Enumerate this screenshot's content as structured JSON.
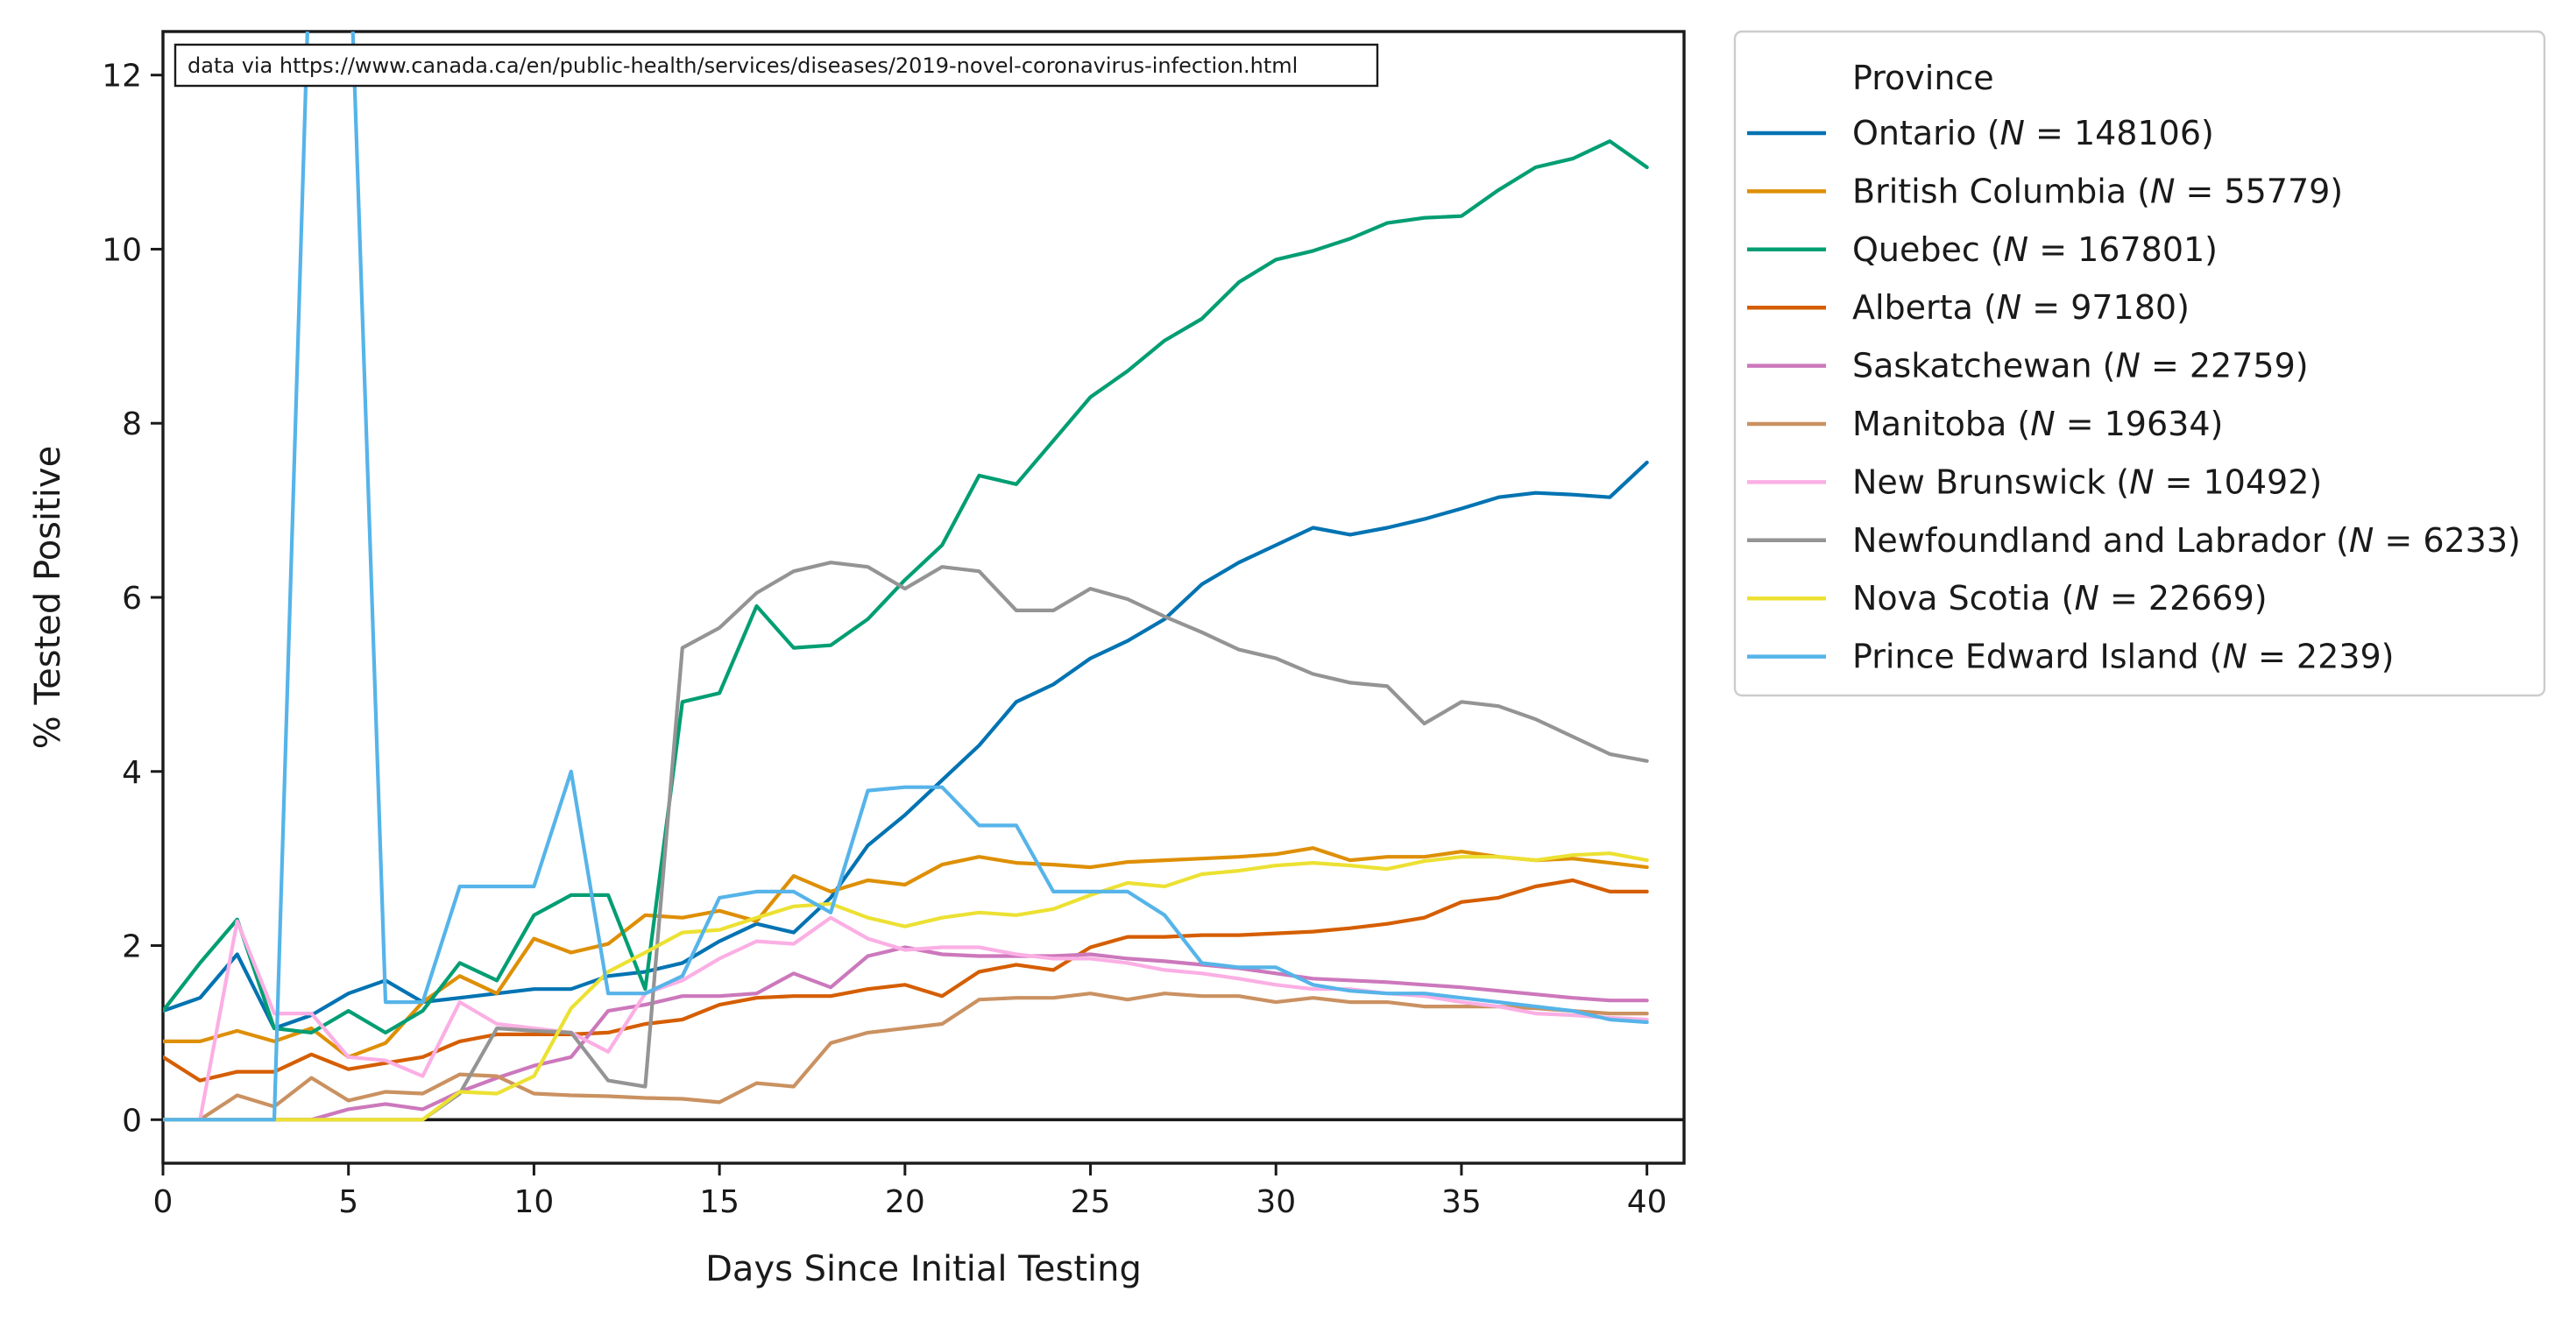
{
  "chart_data": {
    "type": "line",
    "title": "",
    "xlabel": "Days Since Initial Testing",
    "ylabel": "% Tested Positive",
    "xlim": [
      0,
      41
    ],
    "ylim": [
      -0.5,
      12.5
    ],
    "xticks": [
      0,
      5,
      10,
      15,
      20,
      25,
      30,
      35,
      40
    ],
    "yticks": [
      0,
      2,
      4,
      6,
      8,
      10,
      12
    ],
    "zero_line": true,
    "grid": false,
    "annotation": "data via https://www.canada.ca/en/public-health/services/diseases/2019-novel-coronavirus-infection.html",
    "legend": {
      "title": "Province",
      "placement": "outside right, top"
    },
    "x": [
      0,
      1,
      2,
      3,
      4,
      5,
      6,
      7,
      8,
      9,
      10,
      11,
      12,
      13,
      14,
      15,
      16,
      17,
      18,
      19,
      20,
      21,
      22,
      23,
      24,
      25,
      26,
      27,
      28,
      29,
      30,
      31,
      32,
      33,
      34,
      35,
      36,
      37,
      38,
      39,
      40
    ],
    "series": [
      {
        "name": "Ontario",
        "n": "148106",
        "color": "#0173b2",
        "values": [
          1.25,
          1.4,
          1.9,
          1.05,
          1.2,
          1.45,
          1.6,
          1.35,
          1.4,
          1.45,
          1.5,
          1.5,
          1.65,
          1.7,
          1.8,
          2.05,
          2.25,
          2.15,
          2.55,
          3.15,
          3.5,
          3.9,
          4.3,
          4.8,
          5.0,
          5.3,
          5.5,
          5.75,
          6.15,
          6.4,
          6.6,
          6.8,
          6.72,
          6.8,
          6.9,
          7.02,
          7.15,
          7.2,
          7.18,
          7.15,
          7.55
        ]
      },
      {
        "name": "British Columbia",
        "n": "55779",
        "color": "#de8f05",
        "values": [
          0.9,
          0.9,
          1.02,
          0.9,
          1.05,
          0.72,
          0.88,
          1.35,
          1.65,
          1.45,
          2.08,
          1.92,
          2.02,
          2.35,
          2.32,
          2.4,
          2.28,
          2.8,
          2.62,
          2.75,
          2.7,
          2.93,
          3.02,
          2.95,
          2.93,
          2.9,
          2.96,
          2.98,
          3.0,
          3.02,
          3.05,
          3.12,
          2.98,
          3.02,
          3.02,
          3.08,
          3.02,
          2.98,
          3.0,
          2.95,
          2.9
        ]
      },
      {
        "name": "Quebec",
        "n": "167801",
        "color": "#029e73",
        "values": [
          1.25,
          1.8,
          2.3,
          1.05,
          1.0,
          1.25,
          1.0,
          1.25,
          1.8,
          1.6,
          2.35,
          2.58,
          2.58,
          1.5,
          4.8,
          4.9,
          5.9,
          5.42,
          5.45,
          5.75,
          6.2,
          6.6,
          7.4,
          7.3,
          7.8,
          8.3,
          8.6,
          8.95,
          9.2,
          9.62,
          9.88,
          9.98,
          10.12,
          10.3,
          10.36,
          10.38,
          10.68,
          10.94,
          11.04,
          11.24,
          10.94
        ]
      },
      {
        "name": "Alberta",
        "n": "97180",
        "color": "#d55e00",
        "values": [
          0.72,
          0.45,
          0.55,
          0.55,
          0.75,
          0.58,
          0.65,
          0.72,
          0.9,
          0.98,
          0.98,
          0.98,
          1.0,
          1.1,
          1.15,
          1.32,
          1.4,
          1.42,
          1.42,
          1.5,
          1.55,
          1.42,
          1.7,
          1.78,
          1.72,
          1.98,
          2.1,
          2.1,
          2.12,
          2.12,
          2.14,
          2.16,
          2.2,
          2.25,
          2.32,
          2.5,
          2.55,
          2.68,
          2.75,
          2.62,
          2.62
        ]
      },
      {
        "name": "Saskatchewan",
        "n": "22759",
        "color": "#cc78bc",
        "values": [
          0.0,
          0.0,
          0.0,
          0.0,
          0.0,
          0.12,
          0.18,
          0.12,
          0.32,
          0.48,
          0.62,
          0.72,
          1.25,
          1.32,
          1.42,
          1.42,
          1.45,
          1.68,
          1.52,
          1.88,
          1.98,
          1.9,
          1.88,
          1.88,
          1.88,
          1.9,
          1.85,
          1.82,
          1.78,
          1.74,
          1.68,
          1.62,
          1.6,
          1.58,
          1.55,
          1.52,
          1.48,
          1.44,
          1.4,
          1.37,
          1.37
        ]
      },
      {
        "name": "Manitoba",
        "n": "19634",
        "color": "#ca9161",
        "values": [
          0.0,
          0.0,
          0.28,
          0.15,
          0.48,
          0.22,
          0.32,
          0.3,
          0.52,
          0.5,
          0.3,
          0.28,
          0.27,
          0.25,
          0.24,
          0.2,
          0.42,
          0.38,
          0.88,
          1.0,
          1.05,
          1.1,
          1.38,
          1.4,
          1.4,
          1.45,
          1.38,
          1.45,
          1.42,
          1.42,
          1.35,
          1.4,
          1.35,
          1.35,
          1.3,
          1.3,
          1.3,
          1.28,
          1.25,
          1.22,
          1.22
        ]
      },
      {
        "name": "New Brunswick",
        "n": "10492",
        "color": "#fbafe4",
        "values": [
          0.0,
          0.0,
          2.28,
          1.22,
          1.22,
          0.72,
          0.68,
          0.5,
          1.35,
          1.1,
          1.05,
          1.0,
          0.78,
          1.45,
          1.6,
          1.85,
          2.05,
          2.02,
          2.32,
          2.08,
          1.95,
          1.98,
          1.98,
          1.9,
          1.85,
          1.85,
          1.8,
          1.72,
          1.68,
          1.62,
          1.55,
          1.5,
          1.5,
          1.45,
          1.42,
          1.35,
          1.3,
          1.22,
          1.2,
          1.17,
          1.15
        ]
      },
      {
        "name": "Newfoundland and Labrador",
        "n": "6233",
        "color": "#949494",
        "values": [
          0.0,
          0.0,
          0.0,
          0.0,
          0.0,
          0.0,
          0.0,
          0.0,
          0.3,
          1.05,
          1.02,
          1.0,
          0.45,
          0.38,
          5.42,
          5.65,
          6.05,
          6.3,
          6.4,
          6.35,
          6.1,
          6.35,
          6.3,
          5.85,
          5.85,
          6.1,
          5.98,
          5.78,
          5.6,
          5.4,
          5.3,
          5.12,
          5.02,
          4.98,
          4.55,
          4.8,
          4.75,
          4.6,
          4.4,
          4.2,
          4.12
        ]
      },
      {
        "name": "Nova Scotia",
        "n": "22669",
        "color": "#ece133",
        "values": [
          0.0,
          0.0,
          0.0,
          0.0,
          0.0,
          0.0,
          0.0,
          0.0,
          0.32,
          0.3,
          0.5,
          1.28,
          1.7,
          1.92,
          2.15,
          2.18,
          2.32,
          2.45,
          2.48,
          2.32,
          2.22,
          2.32,
          2.38,
          2.35,
          2.42,
          2.58,
          2.72,
          2.68,
          2.82,
          2.86,
          2.92,
          2.95,
          2.92,
          2.88,
          2.97,
          3.02,
          3.02,
          2.98,
          3.04,
          3.06,
          2.98
        ]
      },
      {
        "name": "Prince Edward Island",
        "n": "2239",
        "color": "#56b4e9",
        "values": [
          0.0,
          0.0,
          0.0,
          0.0,
          14.0,
          14.0,
          1.35,
          1.35,
          2.68,
          2.68,
          2.68,
          4.0,
          1.45,
          1.45,
          1.65,
          2.55,
          2.62,
          2.62,
          2.38,
          3.78,
          3.82,
          3.82,
          3.38,
          3.38,
          2.62,
          2.62,
          2.62,
          2.35,
          1.8,
          1.75,
          1.75,
          1.55,
          1.48,
          1.45,
          1.45,
          1.4,
          1.35,
          1.3,
          1.25,
          1.15,
          1.12
        ]
      }
    ]
  }
}
